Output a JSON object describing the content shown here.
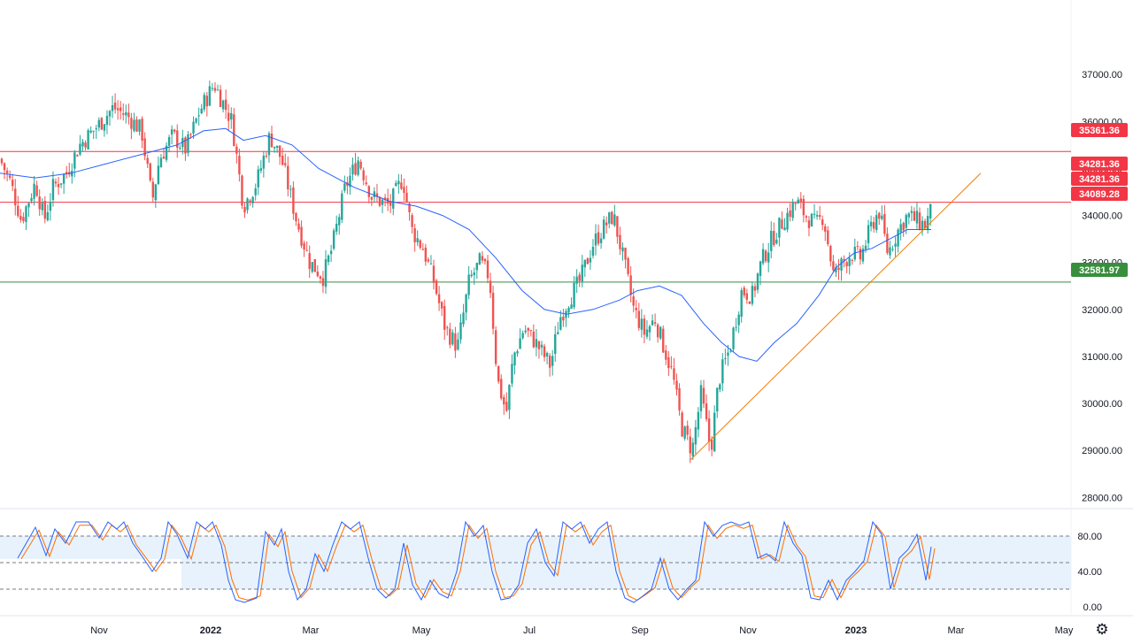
{
  "chart_data": {
    "type": "candlestick",
    "time_axis": {
      "ticks": [
        {
          "label": "Nov",
          "bold": false
        },
        {
          "label": "2022",
          "bold": true
        },
        {
          "label": "Mar",
          "bold": false
        },
        {
          "label": "May",
          "bold": false
        },
        {
          "label": "Jul",
          "bold": false
        },
        {
          "label": "Sep",
          "bold": false
        },
        {
          "label": "Nov",
          "bold": false
        },
        {
          "label": "2023",
          "bold": true
        },
        {
          "label": "Mar",
          "bold": false
        },
        {
          "label": "May",
          "bold": false
        }
      ]
    },
    "price_axis": {
      "range": [
        27800,
        37700
      ],
      "ticks": [
        "28000.00",
        "29000.00",
        "30000.00",
        "31000.00",
        "32000.00",
        "33000.00",
        "34000.00",
        "35000.00",
        "36000.00",
        "37000.00"
      ]
    },
    "horizontal_levels": [
      {
        "value": 35361.36,
        "label": "35361.36",
        "color": "#f23645"
      },
      {
        "value": 34281.36,
        "label": "34281.36",
        "color": "#f23645"
      },
      {
        "value": 32581.97,
        "label": "32581.97",
        "color": "#388e3c"
      }
    ],
    "price_tags": [
      {
        "label": "35361.36",
        "color": "#f23645"
      },
      {
        "label": "34281.36",
        "color": "#f23645"
      },
      {
        "label": "34281.36",
        "color": "#f23645"
      },
      {
        "label": "34089.28",
        "color": "#f23645"
      },
      {
        "label": "32581.97",
        "color": "#388e3c"
      }
    ],
    "moving_average": {
      "color": "#2962ff"
    },
    "trendline": {
      "color": "#f57c00"
    },
    "candle_colors": {
      "up": "#26a69a",
      "down": "#ef5350"
    },
    "close_path": [
      [
        0,
        35200
      ],
      [
        12,
        34700
      ],
      [
        24,
        33900
      ],
      [
        40,
        34700
      ],
      [
        50,
        33900
      ],
      [
        60,
        34600
      ],
      [
        75,
        34900
      ],
      [
        90,
        35500
      ],
      [
        110,
        35900
      ],
      [
        128,
        36300
      ],
      [
        145,
        36100
      ],
      [
        160,
        35800
      ],
      [
        172,
        34300
      ],
      [
        180,
        35200
      ],
      [
        195,
        35700
      ],
      [
        210,
        35400
      ],
      [
        225,
        36200
      ],
      [
        242,
        36800
      ],
      [
        262,
        36000
      ],
      [
        275,
        34200
      ],
      [
        290,
        34700
      ],
      [
        305,
        35700
      ],
      [
        318,
        35200
      ],
      [
        335,
        33900
      ],
      [
        350,
        33000
      ],
      [
        365,
        32700
      ],
      [
        375,
        33300
      ],
      [
        390,
        34600
      ],
      [
        405,
        35200
      ],
      [
        420,
        34400
      ],
      [
        440,
        34200
      ],
      [
        455,
        34800
      ],
      [
        465,
        33700
      ],
      [
        478,
        33300
      ],
      [
        490,
        32600
      ],
      [
        503,
        31600
      ],
      [
        517,
        31200
      ],
      [
        530,
        32600
      ],
      [
        542,
        33000
      ],
      [
        553,
        32700
      ],
      [
        562,
        30500
      ],
      [
        572,
        29800
      ],
      [
        580,
        31000
      ],
      [
        592,
        31600
      ],
      [
        605,
        31300
      ],
      [
        622,
        30800
      ],
      [
        632,
        31800
      ],
      [
        642,
        32200
      ],
      [
        655,
        32600
      ],
      [
        670,
        33400
      ],
      [
        684,
        33800
      ],
      [
        693,
        34000
      ],
      [
        705,
        33000
      ],
      [
        716,
        32000
      ],
      [
        728,
        31500
      ],
      [
        740,
        31800
      ],
      [
        750,
        31200
      ],
      [
        760,
        30600
      ],
      [
        770,
        29500
      ],
      [
        782,
        29000
      ],
      [
        792,
        30200
      ],
      [
        803,
        29000
      ],
      [
        812,
        30500
      ],
      [
        825,
        31200
      ],
      [
        838,
        32400
      ],
      [
        850,
        32300
      ],
      [
        860,
        33000
      ],
      [
        872,
        33500
      ],
      [
        885,
        33900
      ],
      [
        900,
        34300
      ],
      [
        910,
        34000
      ],
      [
        922,
        33800
      ],
      [
        930,
        34000
      ],
      [
        942,
        32700
      ],
      [
        952,
        33000
      ],
      [
        962,
        33200
      ],
      [
        972,
        33100
      ],
      [
        985,
        33800
      ],
      [
        993,
        34100
      ],
      [
        1003,
        33200
      ],
      [
        1015,
        33700
      ],
      [
        1025,
        34000
      ],
      [
        1035,
        33900
      ],
      [
        1045,
        33800
      ],
      [
        1052,
        34100
      ]
    ],
    "ma_path": [
      [
        0,
        34900
      ],
      [
        40,
        34800
      ],
      [
        80,
        34900
      ],
      [
        120,
        35100
      ],
      [
        160,
        35300
      ],
      [
        200,
        35500
      ],
      [
        230,
        35800
      ],
      [
        255,
        35850
      ],
      [
        275,
        35600
      ],
      [
        300,
        35700
      ],
      [
        330,
        35500
      ],
      [
        360,
        35000
      ],
      [
        400,
        34600
      ],
      [
        440,
        34300
      ],
      [
        470,
        34200
      ],
      [
        500,
        34000
      ],
      [
        530,
        33700
      ],
      [
        560,
        33100
      ],
      [
        590,
        32400
      ],
      [
        615,
        32000
      ],
      [
        640,
        31900
      ],
      [
        670,
        32000
      ],
      [
        700,
        32200
      ],
      [
        720,
        32400
      ],
      [
        745,
        32500
      ],
      [
        770,
        32300
      ],
      [
        795,
        31700
      ],
      [
        815,
        31300
      ],
      [
        835,
        31000
      ],
      [
        855,
        30900
      ],
      [
        875,
        31300
      ],
      [
        900,
        31700
      ],
      [
        925,
        32300
      ],
      [
        945,
        32900
      ],
      [
        965,
        33200
      ],
      [
        985,
        33300
      ],
      [
        1005,
        33500
      ],
      [
        1025,
        33700
      ],
      [
        1052,
        33700
      ]
    ],
    "trend_line_points": [
      [
        780,
        28800
      ],
      [
        1108,
        34900
      ]
    ],
    "stochastic": {
      "ticks": [
        "0.00",
        "40.00",
        "80.00"
      ],
      "levels": [
        20,
        50,
        80
      ],
      "band": [
        20,
        80
      ],
      "k_color": "#2962ff",
      "d_color": "#ff6d00",
      "k_path": [
        [
          20,
          55
        ],
        [
          40,
          90
        ],
        [
          52,
          58
        ],
        [
          62,
          88
        ],
        [
          74,
          72
        ],
        [
          86,
          96
        ],
        [
          100,
          96
        ],
        [
          112,
          78
        ],
        [
          122,
          96
        ],
        [
          132,
          88
        ],
        [
          140,
          96
        ],
        [
          150,
          72
        ],
        [
          162,
          55
        ],
        [
          172,
          40
        ],
        [
          182,
          55
        ],
        [
          190,
          96
        ],
        [
          200,
          82
        ],
        [
          212,
          55
        ],
        [
          222,
          96
        ],
        [
          232,
          88
        ],
        [
          240,
          96
        ],
        [
          250,
          70
        ],
        [
          258,
          30
        ],
        [
          266,
          8
        ],
        [
          276,
          5
        ],
        [
          290,
          10
        ],
        [
          300,
          85
        ],
        [
          310,
          70
        ],
        [
          318,
          88
        ],
        [
          326,
          40
        ],
        [
          336,
          8
        ],
        [
          346,
          20
        ],
        [
          356,
          60
        ],
        [
          366,
          40
        ],
        [
          376,
          70
        ],
        [
          386,
          96
        ],
        [
          396,
          88
        ],
        [
          406,
          96
        ],
        [
          416,
          55
        ],
        [
          426,
          20
        ],
        [
          436,
          10
        ],
        [
          446,
          20
        ],
        [
          456,
          72
        ],
        [
          466,
          25
        ],
        [
          476,
          8
        ],
        [
          486,
          30
        ],
        [
          496,
          15
        ],
        [
          506,
          10
        ],
        [
          516,
          40
        ],
        [
          526,
          96
        ],
        [
          536,
          80
        ],
        [
          546,
          92
        ],
        [
          556,
          40
        ],
        [
          566,
          8
        ],
        [
          576,
          10
        ],
        [
          586,
          25
        ],
        [
          596,
          72
        ],
        [
          606,
          88
        ],
        [
          616,
          50
        ],
        [
          626,
          35
        ],
        [
          636,
          96
        ],
        [
          646,
          88
        ],
        [
          656,
          96
        ],
        [
          666,
          72
        ],
        [
          676,
          88
        ],
        [
          686,
          96
        ],
        [
          696,
          40
        ],
        [
          706,
          10
        ],
        [
          716,
          5
        ],
        [
          726,
          12
        ],
        [
          736,
          20
        ],
        [
          746,
          55
        ],
        [
          756,
          20
        ],
        [
          766,
          8
        ],
        [
          776,
          20
        ],
        [
          786,
          30
        ],
        [
          796,
          96
        ],
        [
          806,
          80
        ],
        [
          816,
          92
        ],
        [
          826,
          96
        ],
        [
          836,
          92
        ],
        [
          846,
          96
        ],
        [
          856,
          55
        ],
        [
          866,
          60
        ],
        [
          876,
          52
        ],
        [
          886,
          96
        ],
        [
          896,
          72
        ],
        [
          906,
          58
        ],
        [
          916,
          10
        ],
        [
          926,
          8
        ],
        [
          936,
          30
        ],
        [
          946,
          8
        ],
        [
          956,
          30
        ],
        [
          966,
          40
        ],
        [
          976,
          52
        ],
        [
          986,
          96
        ],
        [
          996,
          82
        ],
        [
          1006,
          20
        ],
        [
          1016,
          55
        ],
        [
          1026,
          65
        ],
        [
          1036,
          82
        ],
        [
          1046,
          30
        ],
        [
          1052,
          68
        ]
      ]
    }
  }
}
